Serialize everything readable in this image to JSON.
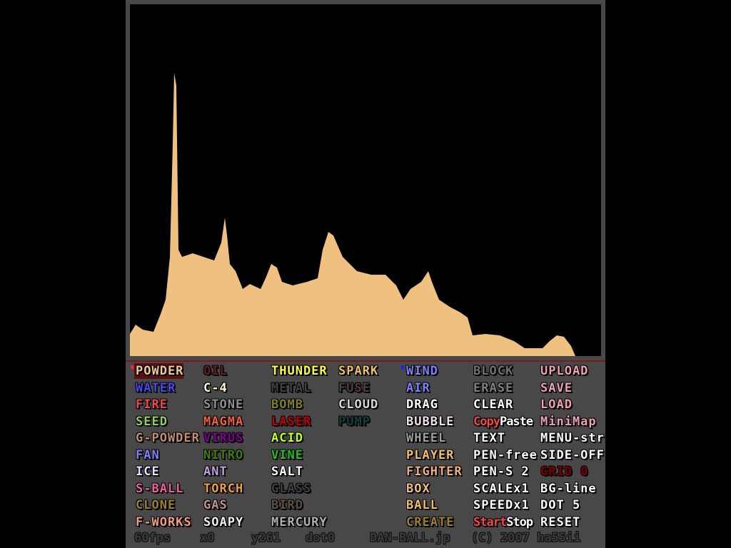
{
  "colors": {
    "frame": "#484848",
    "sand": "#f0c080",
    "selected_bg": "#5a1010",
    "separator": "#801818"
  },
  "menu": [
    [
      {
        "label": "POWDER",
        "color": "#f0c890",
        "selected": true,
        "dot": "#ff2020"
      },
      {
        "label": "WATER",
        "color": "#4848f0"
      },
      {
        "label": "FIRE",
        "color": "#f04848"
      },
      {
        "label": "SEED",
        "color": "#90d060"
      },
      {
        "label": "G-POWDER",
        "color": "#c09070"
      },
      {
        "label": "FAN",
        "color": "#8080ff"
      },
      {
        "label": "ICE",
        "color": "#e0e0ff"
      },
      {
        "label": "S-BALL",
        "color": "#f060a0"
      },
      {
        "label": "CLONE",
        "color": "#a08020"
      },
      {
        "label": "F-WORKS",
        "color": "#f0a080"
      }
    ],
    [
      {
        "label": "OIL",
        "color": "#602020"
      },
      {
        "label": "C-4",
        "color": "#fff8d0"
      },
      {
        "label": "STONE",
        "color": "#909090"
      },
      {
        "label": "MAGMA",
        "color": "#f06040"
      },
      {
        "label": "VIRUS",
        "color": "#800090"
      },
      {
        "label": "NITRO",
        "color": "#408000"
      },
      {
        "label": "ANT",
        "color": "#c0a0e0"
      },
      {
        "label": "TORCH",
        "color": "#f0a040"
      },
      {
        "label": "GAS",
        "color": "#c09090"
      },
      {
        "label": "SOAPY",
        "color": "#f0f0f0"
      }
    ],
    [
      {
        "label": "THUNDER",
        "color": "#ffff40"
      },
      {
        "label": "METAL",
        "color": "#404040"
      },
      {
        "label": "BOMB",
        "color": "#808020"
      },
      {
        "label": "LASER",
        "color": "#c00000"
      },
      {
        "label": "ACID",
        "color": "#c0ff20"
      },
      {
        "label": "VINE",
        "color": "#20c020"
      },
      {
        "label": "SALT",
        "color": "#ffffff"
      },
      {
        "label": "GLASS",
        "color": "#404040"
      },
      {
        "label": "BIRD",
        "color": "#605040"
      },
      {
        "label": "MERCURY",
        "color": "#b0b0b0"
      }
    ],
    [
      {
        "label": "SPARK",
        "color": "#f0c060"
      },
      {
        "label": "FUSE",
        "color": "#504040"
      },
      {
        "label": "CLOUD",
        "color": "#d8d8d8"
      },
      {
        "label": "PUMP",
        "color": "#104040"
      }
    ],
    [
      {
        "label": "WIND",
        "color": "#8080ff",
        "dot": "#2020ff"
      },
      {
        "label": "AIR",
        "color": "#8080ff"
      },
      {
        "label": "DRAG",
        "color": "#ffffff"
      },
      {
        "label": "BUBBLE",
        "color": "#f0e0f0"
      },
      {
        "label": "WHEEL",
        "color": "#a0a0a0"
      },
      {
        "label": "PLAYER",
        "color": "#f0c070"
      },
      {
        "label": "FIGHTER",
        "color": "#f0b080"
      },
      {
        "label": "BOX",
        "color": "#f0c080"
      },
      {
        "label": "BALL",
        "color": "#f0c060"
      },
      {
        "label": "CREATE",
        "color": "#a08030"
      }
    ],
    [
      {
        "label": "BLOCK",
        "color": "#707070"
      },
      {
        "label": "ERASE",
        "color": "#808080"
      },
      {
        "label": "CLEAR",
        "color": "#ffffff"
      },
      {
        "parts": [
          {
            "label": "Copy",
            "color": "#f04848"
          },
          {
            "label": "Paste",
            "color": "#ffffff"
          }
        ]
      },
      {
        "label": "TEXT",
        "color": "#ffffff"
      },
      {
        "label": "PEN-free",
        "color": "#ffffff"
      },
      {
        "label": "PEN-S 2",
        "color": "#ffffff"
      },
      {
        "label": "SCALEx1",
        "color": "#ffffff"
      },
      {
        "label": "SPEEDx1",
        "color": "#ffffff"
      },
      {
        "parts": [
          {
            "label": "Start",
            "color": "#f04848"
          },
          {
            "label": "Stop",
            "color": "#ffffff"
          }
        ]
      }
    ],
    [
      {
        "label": "UPLOAD",
        "color": "#f0a0b0"
      },
      {
        "label": "SAVE",
        "color": "#f0a0b0"
      },
      {
        "label": "LOAD",
        "color": "#f0a0b0"
      },
      {
        "label": "MiniMap",
        "color": "#f0a0b0"
      },
      {
        "label": "MENU-str",
        "color": "#ffffff"
      },
      {
        "label": "SIDE-OFF",
        "color": "#ffffff"
      },
      {
        "label": "GRID 0",
        "color": "#800000"
      },
      {
        "label": "BG-line",
        "color": "#ffffff"
      },
      {
        "label": "DOT 5",
        "color": "#ffffff"
      },
      {
        "label": "RESET",
        "color": "#ffffff"
      }
    ]
  ],
  "status": {
    "fps": "60fps",
    "x": "x0",
    "y": "y261",
    "dot": "dot0",
    "site": "DAN-BALL.jp",
    "copyright": "(C) 2007 ha55ii"
  }
}
